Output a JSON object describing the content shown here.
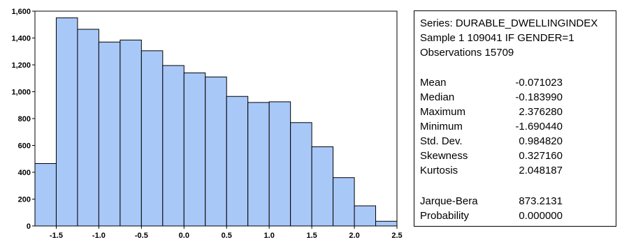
{
  "chart_data": {
    "type": "bar",
    "title": "",
    "xlabel": "",
    "ylabel": "",
    "bin_edges": [
      -1.75,
      -1.5,
      -1.25,
      -1.0,
      -0.75,
      -0.5,
      -0.25,
      0.0,
      0.25,
      0.5,
      0.75,
      1.0,
      1.25,
      1.5,
      1.75,
      2.0,
      2.25,
      2.5
    ],
    "values": [
      465,
      1550,
      1465,
      1370,
      1385,
      1305,
      1195,
      1140,
      1110,
      965,
      920,
      925,
      770,
      590,
      360,
      150,
      35
    ],
    "xlim": [
      -1.75,
      2.5
    ],
    "ylim": [
      0,
      1600
    ],
    "x_ticks": [
      -1.5,
      -1.0,
      -0.5,
      0.0,
      0.5,
      1.0,
      1.5,
      2.0,
      2.5
    ],
    "x_tick_labels": [
      "-1.5",
      "-1.0",
      "-0.5",
      "0.0",
      "0.5",
      "1.0",
      "1.5",
      "2.0",
      "2.5"
    ],
    "y_ticks": [
      0,
      200,
      400,
      600,
      800,
      1000,
      1200,
      1400,
      1600
    ],
    "y_tick_labels": [
      "0",
      "200",
      "400",
      "600",
      "800",
      "1,000",
      "1,200",
      "1,400",
      "1,600"
    ],
    "grid": false,
    "bar_color": "#a8c8f8",
    "bar_edge_color": "#000000"
  },
  "stats": {
    "series": "Series: DURABLE_DWELLINGINDEX",
    "sample": "Sample 1 109041 IF GENDER=1",
    "observations": "Observations 15709",
    "rows": [
      {
        "label": "Mean",
        "value": "-0.071023"
      },
      {
        "label": "Median",
        "value": "-0.183990"
      },
      {
        "label": "Maximum",
        "value": "2.376280"
      },
      {
        "label": "Minimum",
        "value": "-1.690440"
      },
      {
        "label": "Std. Dev.",
        "value": "0.984820"
      },
      {
        "label": "Skewness",
        "value": "0.327160"
      },
      {
        "label": "Kurtosis",
        "value": "2.048187"
      }
    ],
    "test_rows": [
      {
        "label": "Jarque-Bera",
        "value": "873.2131"
      },
      {
        "label": "Probability",
        "value": "0.000000"
      }
    ]
  }
}
